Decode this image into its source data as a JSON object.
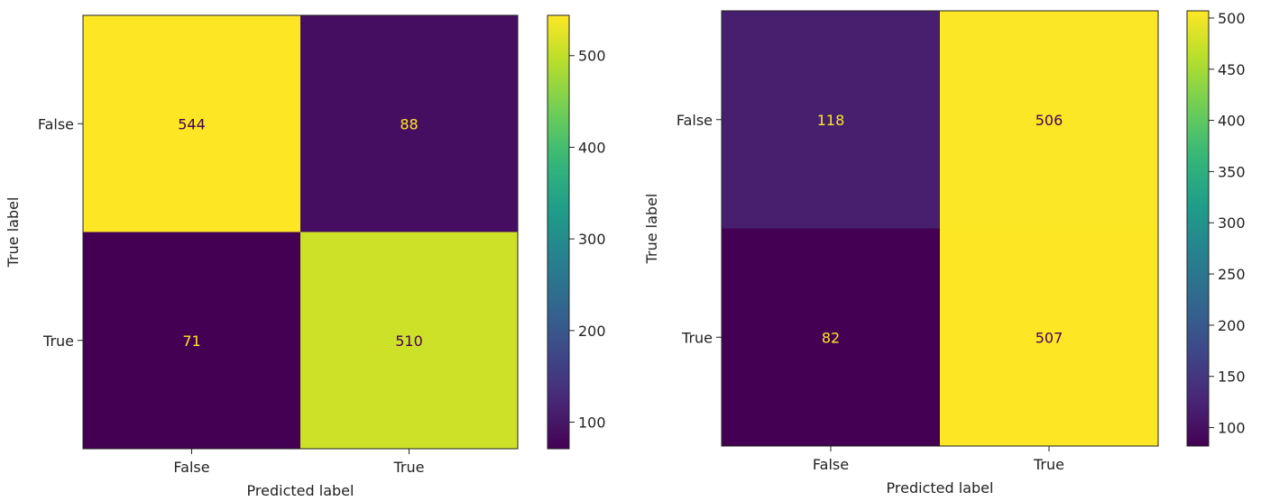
{
  "chart_data": [
    {
      "type": "heatmap",
      "xlabel": "Predicted label",
      "ylabel": "True label",
      "x_categories": [
        "False",
        "True"
      ],
      "y_categories": [
        "False",
        "True"
      ],
      "values": [
        [
          544,
          88
        ],
        [
          71,
          510
        ]
      ],
      "colormap": "viridis",
      "colorbar": {
        "min": 71,
        "max": 544,
        "ticks": [
          100,
          200,
          300,
          400,
          500
        ]
      },
      "cell_text_colors": {
        "dark_cell": "#fde725",
        "light_cell": "#440154"
      }
    },
    {
      "type": "heatmap",
      "xlabel": "Predicted label",
      "ylabel": "True label",
      "x_categories": [
        "False",
        "True"
      ],
      "y_categories": [
        "False",
        "True"
      ],
      "values": [
        [
          118,
          506
        ],
        [
          82,
          507
        ]
      ],
      "colormap": "viridis",
      "colorbar": {
        "min": 82,
        "max": 507,
        "ticks": [
          100,
          150,
          200,
          250,
          300,
          350,
          400,
          450,
          500
        ]
      },
      "cell_text_colors": {
        "dark_cell": "#fde725",
        "light_cell": "#440154"
      }
    }
  ]
}
